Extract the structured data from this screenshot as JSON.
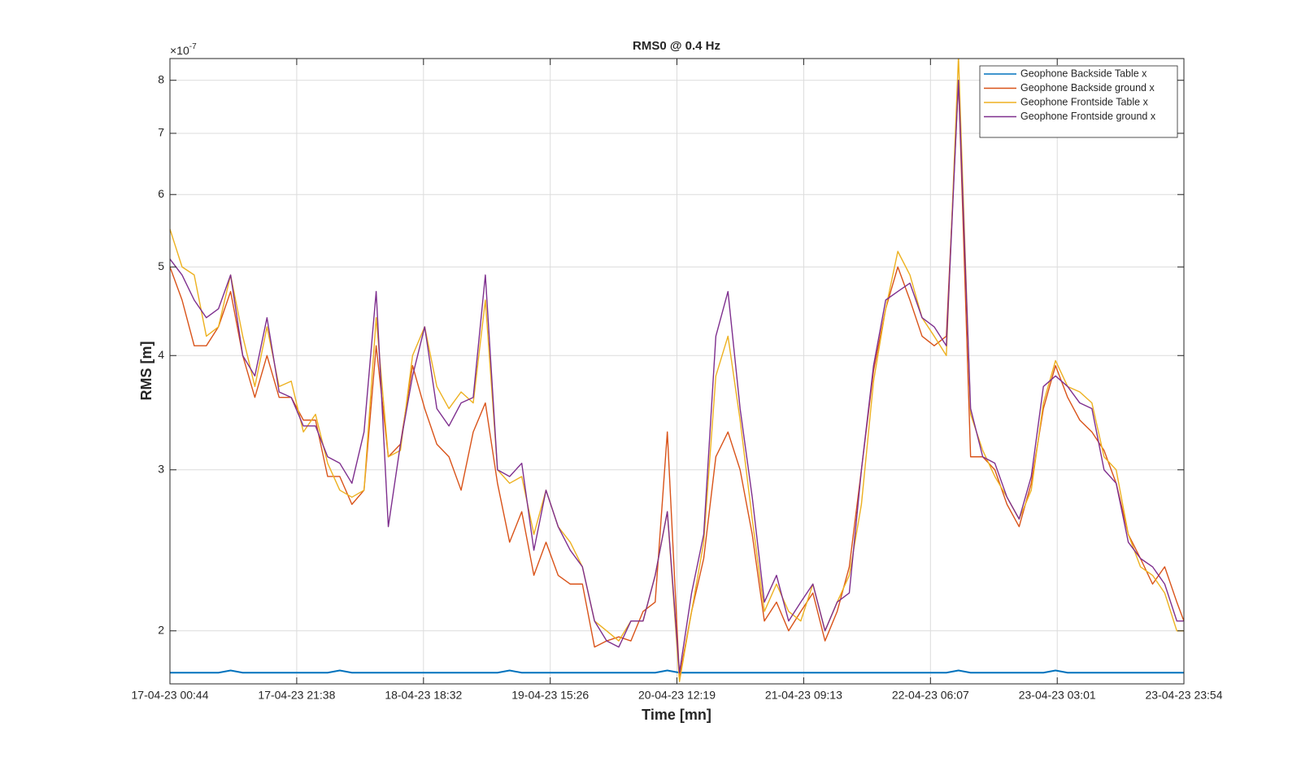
{
  "chart_data": {
    "type": "line",
    "title": "RMS0 @ 0.4 Hz",
    "xlabel": "Time [mn]",
    "ylabel": "RMS [m]",
    "y_exponent": {
      "base": "×10",
      "power": "-7"
    },
    "yscale": "log",
    "grid": true,
    "legend": "northeast",
    "xlim": [
      "2023-04-17T00:44",
      "2023-04-23T23:54"
    ],
    "xticks": [
      {
        "value": "2023-04-17T00:44",
        "label": "17-04-23 00:44"
      },
      {
        "value": "2023-04-17T21:38",
        "label": "17-04-23 21:38"
      },
      {
        "value": "2023-04-18T18:32",
        "label": "18-04-23 18:32"
      },
      {
        "value": "2023-04-19T15:26",
        "label": "19-04-23 15:26"
      },
      {
        "value": "2023-04-20T12:19",
        "label": "20-04-23 12:19"
      },
      {
        "value": "2023-04-21T09:13",
        "label": "21-04-23 09:13"
      },
      {
        "value": "2023-04-22T06:07",
        "label": "22-04-23 06:07"
      },
      {
        "value": "2023-04-23T03:01",
        "label": "23-04-23 03:01"
      },
      {
        "value": "2023-04-23T23:54",
        "label": "23-04-23 23:54"
      }
    ],
    "ylim": [
      1.75,
      8.45
    ],
    "yticks": [
      2,
      3,
      4,
      5,
      6,
      7,
      8
    ],
    "x": [
      "2023-04-17T00:44",
      "2023-04-17T02:44",
      "2023-04-17T04:44",
      "2023-04-17T06:44",
      "2023-04-17T08:44",
      "2023-04-17T10:44",
      "2023-04-17T12:44",
      "2023-04-17T14:44",
      "2023-04-17T16:44",
      "2023-04-17T18:44",
      "2023-04-17T20:44",
      "2023-04-17T22:44",
      "2023-04-18T00:44",
      "2023-04-18T02:44",
      "2023-04-18T04:44",
      "2023-04-18T06:44",
      "2023-04-18T08:44",
      "2023-04-18T10:44",
      "2023-04-18T12:44",
      "2023-04-18T14:44",
      "2023-04-18T16:44",
      "2023-04-18T18:44",
      "2023-04-18T20:44",
      "2023-04-18T22:44",
      "2023-04-19T00:44",
      "2023-04-19T02:44",
      "2023-04-19T04:44",
      "2023-04-19T06:44",
      "2023-04-19T08:44",
      "2023-04-19T10:44",
      "2023-04-19T12:44",
      "2023-04-19T14:44",
      "2023-04-19T16:44",
      "2023-04-19T18:44",
      "2023-04-19T20:44",
      "2023-04-19T22:44",
      "2023-04-20T00:44",
      "2023-04-20T02:44",
      "2023-04-20T04:44",
      "2023-04-20T06:44",
      "2023-04-20T08:44",
      "2023-04-20T10:44",
      "2023-04-20T12:44",
      "2023-04-20T14:44",
      "2023-04-20T16:44",
      "2023-04-20T18:44",
      "2023-04-20T20:44",
      "2023-04-20T22:44",
      "2023-04-21T00:44",
      "2023-04-21T02:44",
      "2023-04-21T04:44",
      "2023-04-21T06:44",
      "2023-04-21T08:44",
      "2023-04-21T10:44",
      "2023-04-21T12:44",
      "2023-04-21T14:44",
      "2023-04-21T16:44",
      "2023-04-21T18:44",
      "2023-04-21T20:44",
      "2023-04-21T22:44",
      "2023-04-22T00:44",
      "2023-04-22T02:44",
      "2023-04-22T04:44",
      "2023-04-22T06:44",
      "2023-04-22T08:44",
      "2023-04-22T10:44",
      "2023-04-22T12:44",
      "2023-04-22T14:44",
      "2023-04-22T16:44",
      "2023-04-22T18:44",
      "2023-04-22T20:44",
      "2023-04-22T22:44",
      "2023-04-23T00:44",
      "2023-04-23T02:44",
      "2023-04-23T04:44",
      "2023-04-23T06:44",
      "2023-04-23T08:44",
      "2023-04-23T10:44",
      "2023-04-23T12:44",
      "2023-04-23T14:44",
      "2023-04-23T16:44",
      "2023-04-23T18:44",
      "2023-04-23T20:44",
      "2023-04-23T22:44",
      "2023-04-23T23:54"
    ],
    "series": [
      {
        "name": "Geophone Backside Table x",
        "color": "#0072BD",
        "values": [
          1.8,
          1.8,
          1.8,
          1.8,
          1.8,
          1.81,
          1.8,
          1.8,
          1.8,
          1.8,
          1.8,
          1.8,
          1.8,
          1.8,
          1.81,
          1.8,
          1.8,
          1.8,
          1.8,
          1.8,
          1.8,
          1.8,
          1.8,
          1.8,
          1.8,
          1.8,
          1.8,
          1.8,
          1.81,
          1.8,
          1.8,
          1.8,
          1.8,
          1.8,
          1.8,
          1.8,
          1.8,
          1.8,
          1.8,
          1.8,
          1.8,
          1.81,
          1.8,
          1.8,
          1.8,
          1.8,
          1.8,
          1.8,
          1.8,
          1.8,
          1.8,
          1.8,
          1.8,
          1.8,
          1.8,
          1.8,
          1.8,
          1.8,
          1.8,
          1.8,
          1.8,
          1.8,
          1.8,
          1.8,
          1.8,
          1.81,
          1.8,
          1.8,
          1.8,
          1.8,
          1.8,
          1.8,
          1.8,
          1.81,
          1.8,
          1.8,
          1.8,
          1.8,
          1.8,
          1.8,
          1.8,
          1.8,
          1.8,
          1.8,
          1.8
        ]
      },
      {
        "name": "Geophone Backside ground x",
        "color": "#D95319",
        "values": [
          5.0,
          4.6,
          4.1,
          4.1,
          4.3,
          4.7,
          4.0,
          3.6,
          4.0,
          3.6,
          3.6,
          3.4,
          3.4,
          2.95,
          2.95,
          2.75,
          2.85,
          4.1,
          3.1,
          3.2,
          3.9,
          3.5,
          3.2,
          3.1,
          2.85,
          3.3,
          3.55,
          2.9,
          2.5,
          2.7,
          2.3,
          2.5,
          2.3,
          2.25,
          2.25,
          1.92,
          1.95,
          1.97,
          1.95,
          2.1,
          2.15,
          3.3,
          1.78,
          2.1,
          2.4,
          3.1,
          3.3,
          3.0,
          2.55,
          2.05,
          2.15,
          2.0,
          2.1,
          2.2,
          1.95,
          2.1,
          2.35,
          3.0,
          3.85,
          4.5,
          5.0,
          4.6,
          4.2,
          4.1,
          4.2,
          8.0,
          3.1,
          3.1,
          3.0,
          2.75,
          2.6,
          2.9,
          3.5,
          3.9,
          3.6,
          3.4,
          3.3,
          3.15,
          2.9,
          2.55,
          2.4,
          2.25,
          2.35,
          2.15,
          2.05
        ]
      },
      {
        "name": "Geophone Frontside Table x",
        "color": "#EDB120",
        "values": [
          5.5,
          5.0,
          4.9,
          4.2,
          4.3,
          4.9,
          4.2,
          3.7,
          4.3,
          3.7,
          3.75,
          3.3,
          3.45,
          3.05,
          2.85,
          2.8,
          2.85,
          4.4,
          3.1,
          3.15,
          4.0,
          4.3,
          3.7,
          3.5,
          3.65,
          3.55,
          4.6,
          3.0,
          2.9,
          2.95,
          2.55,
          2.85,
          2.6,
          2.5,
          2.35,
          2.05,
          2.0,
          1.95,
          2.05,
          2.05,
          2.3,
          2.7,
          1.76,
          2.1,
          2.5,
          3.8,
          4.2,
          3.4,
          2.65,
          2.1,
          2.25,
          2.1,
          2.05,
          2.25,
          2.0,
          2.15,
          2.3,
          2.75,
          3.75,
          4.5,
          5.2,
          4.9,
          4.4,
          4.2,
          4.0,
          8.5,
          3.45,
          3.15,
          2.95,
          2.8,
          2.65,
          2.85,
          3.55,
          3.95,
          3.7,
          3.65,
          3.55,
          3.1,
          3.0,
          2.55,
          2.35,
          2.3,
          2.2,
          2.0,
          2.0
        ]
      },
      {
        "name": "Geophone Frontside ground x",
        "color": "#7E2F8E",
        "values": [
          5.1,
          4.9,
          4.6,
          4.4,
          4.5,
          4.9,
          4.0,
          3.8,
          4.4,
          3.65,
          3.6,
          3.35,
          3.35,
          3.1,
          3.05,
          2.9,
          3.3,
          4.7,
          2.6,
          3.2,
          3.8,
          4.3,
          3.5,
          3.35,
          3.55,
          3.6,
          4.9,
          3.0,
          2.95,
          3.05,
          2.45,
          2.85,
          2.6,
          2.45,
          2.35,
          2.05,
          1.95,
          1.92,
          2.05,
          2.05,
          2.3,
          2.7,
          1.8,
          2.2,
          2.55,
          4.2,
          4.7,
          3.5,
          2.8,
          2.15,
          2.3,
          2.05,
          2.15,
          2.25,
          2.0,
          2.15,
          2.2,
          3.0,
          3.9,
          4.6,
          4.7,
          4.8,
          4.4,
          4.3,
          4.1,
          8.0,
          3.5,
          3.1,
          3.05,
          2.8,
          2.65,
          2.95,
          3.7,
          3.8,
          3.7,
          3.55,
          3.5,
          3.0,
          2.9,
          2.5,
          2.4,
          2.35,
          2.25,
          2.05,
          2.05
        ]
      }
    ]
  }
}
